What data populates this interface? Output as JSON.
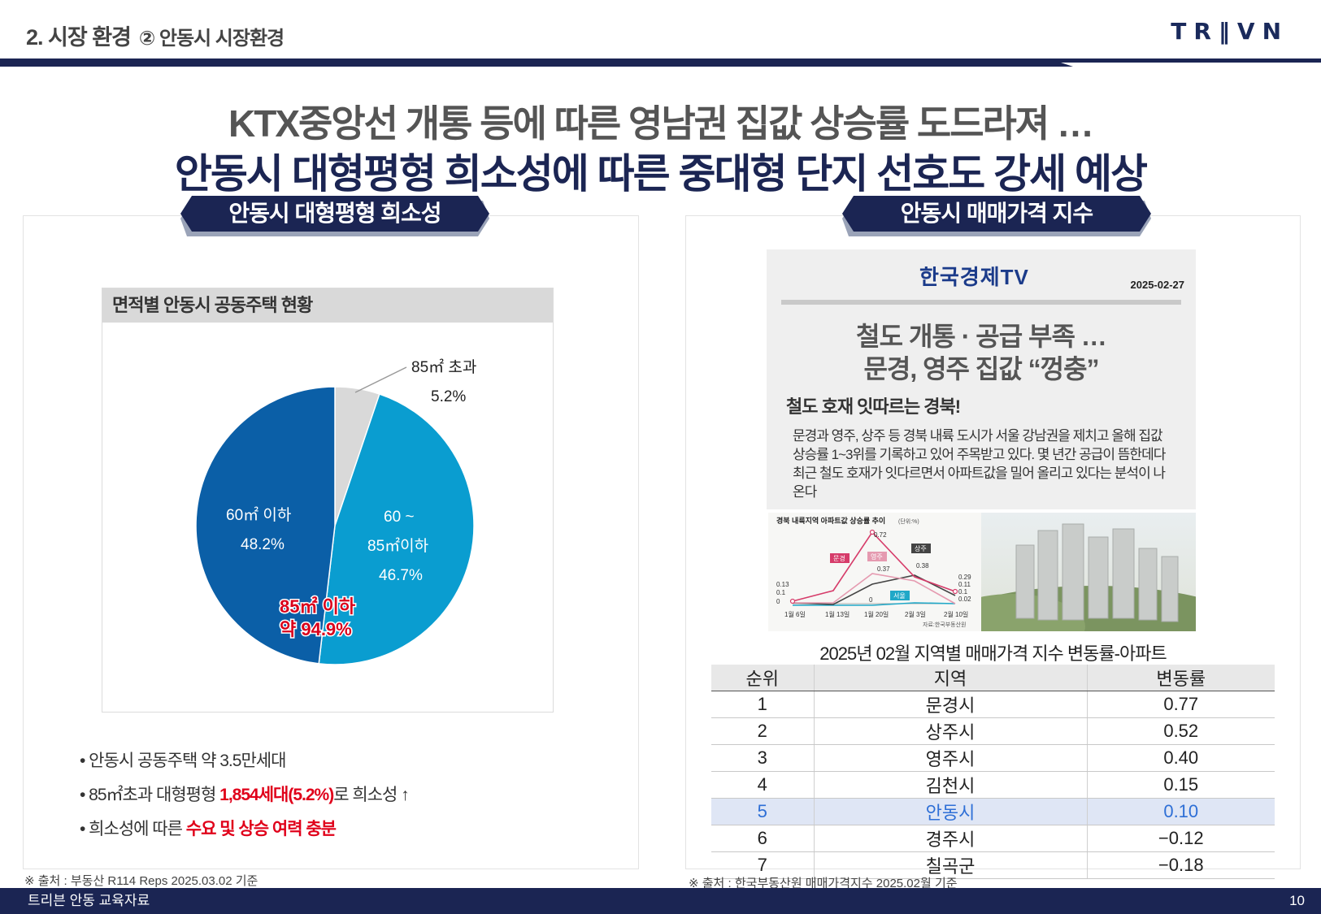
{
  "header": {
    "section": "2. 시장 환경",
    "subsection": "② 안동시 시장환경",
    "logo": "TR‖VN"
  },
  "headline": {
    "line1": "KTX중앙선 개통 등에 따른 영남권 집값 상승률 도드라져 …",
    "line2": "안동시 대형평형 희소성에 따른 중대형 단지 선호도 강세 예상"
  },
  "left_panel": {
    "tab": "안동시 대형평형 희소성",
    "chart_title": "면적별 안동시 공동주택 현황",
    "callout_line1": "85㎡ 이하",
    "callout_line2": "약 94.9%",
    "bullets": {
      "b1": "• 안동시 공동주택 약 3.5만세대",
      "b2_pre": "• 85㎡초과 대형평형 ",
      "b2_red": "1,854세대(5.2%)",
      "b2_post": "로 희소성 ↑",
      "b3_pre": "• 희소성에 따른 ",
      "b3_red": "수요 및 상승 여력 충분"
    },
    "source": "※ 출처 : 부동산 R114 Reps 2025.03.02 기준"
  },
  "chart_data": {
    "type": "pie",
    "title": "면적별 안동시 공동주택 현황",
    "slices": [
      {
        "label": "85㎡ 초과",
        "value": 5.2,
        "value_label": "5.2%",
        "color": "#d9d9d9"
      },
      {
        "label": "60 ~ 85㎡이하",
        "value": 46.7,
        "value_label": "46.7%",
        "color": "#0a9dd0"
      },
      {
        "label": "60㎡ 이하",
        "value": 48.2,
        "value_label": "48.2%",
        "color": "#0b5fa7"
      }
    ],
    "slice_text": {
      "s0_label": "85㎡ 초과",
      "s0_value": "5.2%",
      "s1_l1": "60 ~",
      "s1_l2": "85㎡이하",
      "s1_value": "46.7%",
      "s2_label": "60㎡ 이하",
      "s2_value": "48.2%"
    }
  },
  "right_panel": {
    "tab": "안동시 매매가격 지수",
    "news": {
      "brand": "한국경제TV",
      "date": "2025-02-27",
      "title1": "철도 개통 · 공급 부족 …",
      "title2": "문경, 영주 집값 “껑충”",
      "subhead": "철도 호재 잇따르는 경북!",
      "body": "문경과 영주, 상주 등 경북 내륙 도시가 서울 강남권을 제치고 올해 집값 상승률 1~3위를 기록하고 있어 주목받고 있다. 몇 년간 공급이 뜸한데다 최근 철도 호재가 잇다르면서 아파트값을 밀어 올리고 있다는 분석이 나온다"
    },
    "mini_chart": {
      "title": "경북 내륙지역 아파트값 상승률 추이",
      "unit": "(단위:%)",
      "x_labels": [
        "1월 6일",
        "1월 13일",
        "1월 20일",
        "2월 3일",
        "2월 10일"
      ],
      "source": "자료:한국부동산원",
      "labels": {
        "mungyeong": "문경",
        "yeongju": "영주",
        "sangju": "상주",
        "seoul": "서울"
      },
      "value_labels": {
        "peak": "0.72",
        "yj": "0.37",
        "sj": "0.38",
        "zero_mid": "0",
        "r1": "0.29",
        "r2": "0.11",
        "r3": "0.1",
        "r4": "0.02",
        "l1": "0.13",
        "l2": "0.1",
        "l3": "0"
      }
    },
    "table_title": "2025년 02월 지역별 매매가격 지수 변동률-아파트",
    "table": {
      "headers": [
        "순위",
        "지역",
        "변동률"
      ],
      "rows": [
        [
          "1",
          "문경시",
          "0.77"
        ],
        [
          "2",
          "상주시",
          "0.52"
        ],
        [
          "3",
          "영주시",
          "0.40"
        ],
        [
          "4",
          "김천시",
          "0.15"
        ],
        [
          "5",
          "안동시",
          "0.10"
        ],
        [
          "6",
          "경주시",
          "−0.12"
        ],
        [
          "7",
          "칠곡군",
          "−0.18"
        ]
      ]
    },
    "source": "※ 출처 : 한국부동산원 매매가격지수  2025.02월 기준"
  },
  "footer": {
    "text": "트리븐 안동 교육자료",
    "page": "10"
  },
  "colors": {
    "navy": "#1b2553",
    "red": "#e0001a",
    "pie_dark": "#0b5fa7",
    "pie_light": "#0a9dd0",
    "pie_grey": "#d9d9d9"
  }
}
